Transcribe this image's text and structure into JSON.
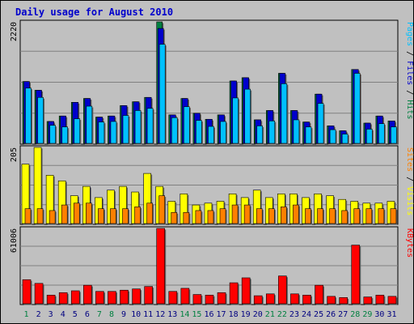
{
  "title": "Daily usage for August 2010",
  "colors": {
    "frame_bg": "#c0c0c0",
    "plot_bg": "#c0c0c0",
    "title": "#0000cc",
    "hits": "#008040",
    "files": "#0000cc",
    "pages": "#00c0ff",
    "visits": "#ffff00",
    "sites": "#ff8000",
    "kbytes": "#ff0000",
    "weekend_label": "#008040",
    "weekday_label": "#000080"
  },
  "chart_data": [
    {
      "type": "bar",
      "panel": "top",
      "max_label": "2220",
      "right_label_parts": [
        {
          "text": "Pages",
          "color": "#00c0ff"
        },
        {
          "text": " / ",
          "color": "#000000"
        },
        {
          "text": "Files",
          "color": "#0000cc"
        },
        {
          "text": " / ",
          "color": "#000000"
        },
        {
          "text": "Hits",
          "color": "#008040"
        }
      ],
      "ylim": [
        0,
        2220
      ],
      "categories": [
        "1",
        "2",
        "3",
        "4",
        "5",
        "6",
        "7",
        "8",
        "9",
        "10",
        "11",
        "12",
        "13",
        "14",
        "15",
        "16",
        "17",
        "18",
        "19",
        "20",
        "21",
        "22",
        "23",
        "24",
        "25",
        "26",
        "27",
        "28",
        "29",
        "30",
        "31"
      ],
      "series": [
        {
          "name": "Hits",
          "values": [
            1130,
            970,
            400,
            500,
            750,
            820,
            480,
            500,
            690,
            760,
            840,
            2220,
            520,
            820,
            550,
            440,
            520,
            1140,
            1200,
            430,
            600,
            1280,
            600,
            390,
            900,
            320,
            230,
            1350,
            370,
            500,
            410
          ]
        },
        {
          "name": "Files",
          "values": [
            1130,
            970,
            400,
            500,
            750,
            820,
            480,
            500,
            690,
            760,
            840,
            2100,
            520,
            820,
            550,
            440,
            520,
            1140,
            1200,
            430,
            600,
            1280,
            600,
            390,
            900,
            320,
            230,
            1350,
            370,
            500,
            410
          ]
        },
        {
          "name": "Pages",
          "values": [
            1010,
            840,
            330,
            300,
            450,
            680,
            390,
            400,
            510,
            600,
            640,
            1810,
            470,
            670,
            420,
            310,
            400,
            830,
            990,
            320,
            410,
            1090,
            430,
            300,
            730,
            250,
            170,
            1280,
            260,
            360,
            300
          ]
        }
      ]
    },
    {
      "type": "bar",
      "panel": "middle",
      "max_label": "205",
      "right_label_parts": [
        {
          "text": "Sites",
          "color": "#ff8000"
        },
        {
          "text": " / ",
          "color": "#000000"
        },
        {
          "text": "Visits",
          "color": "#ffff00"
        }
      ],
      "ylim": [
        0,
        205
      ],
      "categories": [
        "1",
        "2",
        "3",
        "4",
        "5",
        "6",
        "7",
        "8",
        "9",
        "10",
        "11",
        "12",
        "13",
        "14",
        "15",
        "16",
        "17",
        "18",
        "19",
        "20",
        "21",
        "22",
        "23",
        "24",
        "25",
        "26",
        "27",
        "28",
        "29",
        "30",
        "31"
      ],
      "series": [
        {
          "name": "Visits",
          "values": [
            160,
            205,
            130,
            115,
            75,
            100,
            70,
            90,
            100,
            85,
            135,
            100,
            60,
            80,
            50,
            55,
            60,
            80,
            70,
            90,
            70,
            80,
            80,
            70,
            80,
            75,
            65,
            60,
            55,
            55,
            60
          ]
        },
        {
          "name": "Sites",
          "values": [
            40,
            40,
            35,
            50,
            55,
            55,
            40,
            40,
            40,
            45,
            55,
            75,
            30,
            30,
            35,
            35,
            40,
            50,
            50,
            40,
            40,
            45,
            50,
            40,
            40,
            40,
            35,
            40,
            40,
            40,
            40
          ]
        }
      ]
    },
    {
      "type": "bar",
      "panel": "bottom",
      "max_label": "61006",
      "right_label_parts": [
        {
          "text": "KBytes",
          "color": "#ff0000"
        }
      ],
      "ylim": [
        0,
        61006
      ],
      "categories": [
        "1",
        "2",
        "3",
        "4",
        "5",
        "6",
        "7",
        "8",
        "9",
        "10",
        "11",
        "12",
        "13",
        "14",
        "15",
        "16",
        "17",
        "18",
        "19",
        "20",
        "21",
        "22",
        "23",
        "24",
        "25",
        "26",
        "27",
        "28",
        "29",
        "30",
        "31"
      ],
      "series": [
        {
          "name": "KBytes",
          "values": [
            19500,
            16500,
            7000,
            9000,
            10500,
            15000,
            10000,
            10000,
            11000,
            12000,
            14000,
            61006,
            10000,
            12500,
            7500,
            7000,
            9000,
            17000,
            21000,
            6500,
            8000,
            22500,
            8000,
            7000,
            15000,
            6000,
            5000,
            47500,
            5500,
            7000,
            6000
          ]
        }
      ]
    }
  ],
  "x_labels": [
    "1",
    "2",
    "3",
    "4",
    "5",
    "6",
    "7",
    "8",
    "9",
    "10",
    "11",
    "12",
    "13",
    "14",
    "15",
    "16",
    "17",
    "18",
    "19",
    "20",
    "21",
    "22",
    "23",
    "24",
    "25",
    "26",
    "27",
    "28",
    "29",
    "30",
    "31"
  ],
  "weekend_days": [
    1,
    7,
    8,
    14,
    15,
    21,
    22,
    28,
    29
  ]
}
